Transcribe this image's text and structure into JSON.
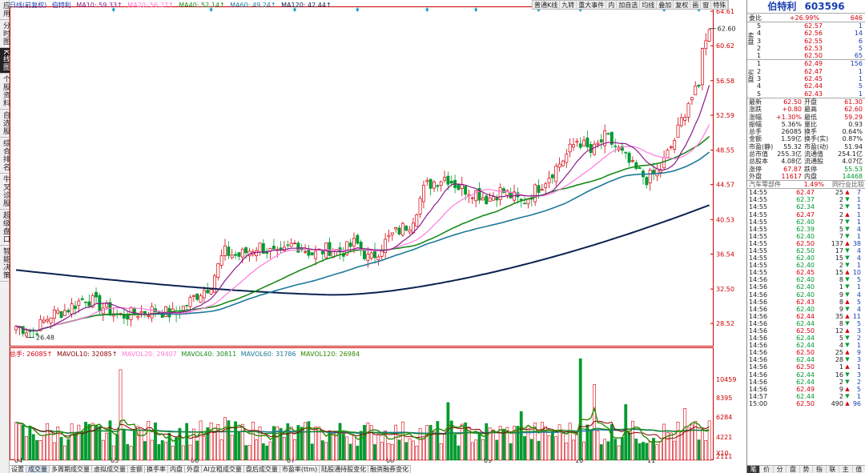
{
  "left_tabs": [
    "应用",
    "分时图",
    "K线图",
    "个股资料",
    "自选股",
    "综合排名",
    "牛叉诊股",
    "超级盘口",
    "智能决策"
  ],
  "left_active": 2,
  "ma_legend": {
    "period": "日线(前复权)",
    "name": "伯特利",
    "ma10": "MA10: 59.33↑",
    "ma20": "MA20: 56.27↑",
    "ma40": "MA40: 52.14↑",
    "ma60": "MA60: 49.24↑",
    "ma120": "MA120: 42.44↑"
  },
  "topbar": [
    "普通K线",
    "九转",
    "重大事件",
    "内",
    "加自选",
    "均线",
    "叠加",
    "复权",
    "画",
    "窗",
    "特殊"
  ],
  "price_axis": [
    "64.61",
    "60.62",
    "56.58",
    "52.59",
    "48.55",
    "44.57",
    "40.53",
    "36.54",
    "32.50",
    "28.52"
  ],
  "vol_axis": [
    "10459",
    "8395",
    "6284",
    "4221",
    "2111",
    "X10"
  ],
  "vol_legend": {
    "total": "总手: 26085↑",
    "mavol10": "MAVOL10: 32085↑",
    "mavol20": "MAVOL20: 29407",
    "mavol40": "MAVOL40: 30811",
    "mavol60": "MAVOL60: 31786",
    "mavol120": "MAVOL120: 26984"
  },
  "months": [
    "04",
    "05",
    "06",
    "07",
    "08",
    "09",
    "10",
    "11"
  ],
  "high_label": "62.60",
  "low_label": "26.48",
  "bottom_tabs": [
    "设置",
    "成交量",
    "多周期成交量",
    "虚拟成交量",
    "金额",
    "换手率",
    "内盘",
    "外盘",
    "AI立租成交量",
    "盘后成交量",
    "市盈率(ttm)",
    "陆股通持股变化",
    "融资融券变化"
  ],
  "bottom_active": 1,
  "stock": {
    "name": "伯特利",
    "code": "603596"
  },
  "weibi": {
    "label": "委比",
    "pct": "+26.99%",
    "diff": "646"
  },
  "sell": [
    {
      "n": "5",
      "p": "62.57",
      "v": "1"
    },
    {
      "n": "4",
      "p": "62.56",
      "v": "14"
    },
    {
      "n": "3",
      "p": "62.55",
      "v": "6"
    },
    {
      "n": "2",
      "p": "62.53",
      "v": "5"
    },
    {
      "n": "1",
      "p": "62.50",
      "v": "65"
    }
  ],
  "buy": [
    {
      "n": "1",
      "p": "62.49",
      "v": "156"
    },
    {
      "n": "2",
      "p": "62.47",
      "v": "1"
    },
    {
      "n": "3",
      "p": "62.45",
      "v": "1"
    },
    {
      "n": "4",
      "p": "62.44",
      "v": "5"
    },
    {
      "n": "5",
      "p": "62.43",
      "v": "1"
    }
  ],
  "sell_label": "卖盘",
  "buy_label": "买盘",
  "quote": [
    [
      "最新",
      "62.50",
      "开盘",
      "61.30"
    ],
    [
      "涨跌",
      "+0.80",
      "最高",
      "62.60"
    ],
    [
      "涨幅",
      "+1.30%",
      "最低",
      "59.29"
    ],
    [
      "振幅",
      "5.36%",
      "量比",
      "0.93"
    ],
    [
      "总手",
      "26085",
      "换手",
      "0.64%"
    ],
    [
      "金额",
      "1.59亿",
      "换手(实)",
      "0.87%"
    ],
    [
      "市盈(静)",
      "55.32",
      "市盈(动)",
      "51.94"
    ],
    [
      "总市值",
      "255.3亿",
      "流通值",
      "254.1亿"
    ],
    [
      "总股本",
      "4.08亿",
      "流通股",
      "4.07亿"
    ],
    [
      "涨停",
      "67.87",
      "跌停",
      "55.53"
    ],
    [
      "外盘",
      "11617",
      "内盘",
      "14468"
    ]
  ],
  "sector": {
    "name": "汽车零部件",
    "pct": "1.49%",
    "link": "同行业比较"
  },
  "ticks": [
    [
      "14:55",
      "62.47",
      "25",
      "7"
    ],
    [
      "14:55",
      "62.37",
      "2",
      "1"
    ],
    [
      "14:55",
      "62.34",
      "2",
      "1"
    ],
    [
      "14:55",
      "62.47",
      "2",
      "1"
    ],
    [
      "14:55",
      "62.40",
      "7",
      "1"
    ],
    [
      "14:55",
      "62.39",
      "5",
      "4"
    ],
    [
      "14:55",
      "62.40",
      "7",
      "1"
    ],
    [
      "14:55",
      "62.50",
      "137",
      "38"
    ],
    [
      "14:55",
      "62.50",
      "17",
      "4"
    ],
    [
      "14:55",
      "62.40",
      "15",
      "4"
    ],
    [
      "14:55",
      "62.40",
      "2",
      "1"
    ],
    [
      "14:55",
      "62.45",
      "15",
      "10"
    ],
    [
      "14:56",
      "62.40",
      "8",
      "5"
    ],
    [
      "14:56",
      "62.40",
      "1",
      "1"
    ],
    [
      "14:56",
      "62.40",
      "9",
      "4"
    ],
    [
      "14:56",
      "62.43",
      "8",
      "5"
    ],
    [
      "14:56",
      "62.40",
      "9",
      "4"
    ],
    [
      "14:56",
      "62.44",
      "35",
      "11"
    ],
    [
      "14:56",
      "62.44",
      "8",
      "5"
    ],
    [
      "14:56",
      "62.50",
      "12",
      "3"
    ],
    [
      "14:56",
      "62.44",
      "5",
      "2"
    ],
    [
      "14:56",
      "62.44",
      "4",
      "1"
    ],
    [
      "14:56",
      "62.50",
      "25",
      "9"
    ],
    [
      "14:56",
      "62.44",
      "28",
      "3"
    ],
    [
      "14:56",
      "62.50",
      "1",
      "1"
    ],
    [
      "14:56",
      "62.44",
      "16",
      "3"
    ],
    [
      "14:56",
      "62.44",
      "2",
      "2"
    ],
    [
      "14:56",
      "62.49",
      "9",
      "5"
    ],
    [
      "14:57",
      "62.44",
      "2",
      "1"
    ],
    [
      "15:00",
      "62.50",
      "490",
      "96"
    ]
  ],
  "tick_dirs": [
    "up",
    "dn",
    "dn",
    "up",
    "dn",
    "dn",
    "dn",
    "up",
    "dn",
    "dn",
    "dn",
    "up",
    "dn",
    "dn",
    "dn",
    "up",
    "dn",
    "up",
    "dn",
    "up",
    "dn",
    "dn",
    "up",
    "dn",
    "up",
    "dn",
    "dn",
    "up",
    "dn",
    "up"
  ],
  "rp_bottom": [
    "笔",
    "价",
    "分",
    "盘",
    "势",
    "指",
    "联",
    "主",
    "值"
  ],
  "colors": {
    "up": "#d4000c",
    "down": "#009a2f",
    "ma10": "#8b1a8b",
    "ma20": "#ff7bdc",
    "ma40": "#1a8a1a",
    "ma60": "#1b7a9a",
    "ma120": "#0b2250",
    "vol_ma5": "#2c8a00",
    "vol_ma10": "#8b0000"
  }
}
